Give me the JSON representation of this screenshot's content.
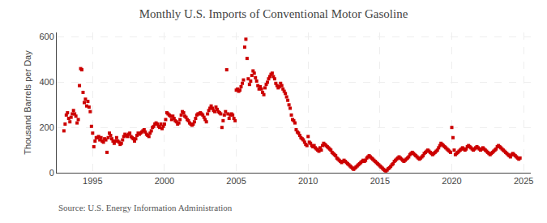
{
  "chart_data": {
    "type": "scatter",
    "title": "Monthly U.S. Imports of Conventional Motor Gasoline",
    "ylabel": "Thousand Barrels per Day",
    "annotations": [
      "Source: U.S. Energy Information Administration"
    ],
    "color": "#cc0000",
    "marker": "square",
    "grid": true,
    "xlim": [
      1992.5,
      2025.5
    ],
    "ylim": [
      0,
      620
    ],
    "xticks": [
      1995,
      2000,
      2005,
      2010,
      2015,
      2020,
      2025
    ],
    "yticks": [
      0,
      200,
      400,
      600
    ],
    "x": [
      1993.0,
      1993.083,
      1993.167,
      1993.25,
      1993.333,
      1993.417,
      1993.5,
      1993.583,
      1993.667,
      1993.75,
      1993.833,
      1993.917,
      1994.0,
      1994.083,
      1994.167,
      1994.25,
      1994.333,
      1994.417,
      1994.5,
      1994.583,
      1994.667,
      1994.75,
      1994.833,
      1994.917,
      1995.0,
      1995.083,
      1995.167,
      1995.25,
      1995.333,
      1995.417,
      1995.5,
      1995.583,
      1995.667,
      1995.75,
      1995.833,
      1995.917,
      1996.0,
      1996.083,
      1996.167,
      1996.25,
      1996.333,
      1996.417,
      1996.5,
      1996.583,
      1996.667,
      1996.75,
      1996.833,
      1996.917,
      1997.0,
      1997.083,
      1997.167,
      1997.25,
      1997.333,
      1997.417,
      1997.5,
      1997.583,
      1997.667,
      1997.75,
      1997.833,
      1997.917,
      1998.0,
      1998.083,
      1998.167,
      1998.25,
      1998.333,
      1998.417,
      1998.5,
      1998.583,
      1998.667,
      1998.75,
      1998.833,
      1998.917,
      1999.0,
      1999.083,
      1999.167,
      1999.25,
      1999.333,
      1999.417,
      1999.5,
      1999.583,
      1999.667,
      1999.75,
      1999.833,
      1999.917,
      2000.0,
      2000.083,
      2000.167,
      2000.25,
      2000.333,
      2000.417,
      2000.5,
      2000.583,
      2000.667,
      2000.75,
      2000.833,
      2000.917,
      2001.0,
      2001.083,
      2001.167,
      2001.25,
      2001.333,
      2001.417,
      2001.5,
      2001.583,
      2001.667,
      2001.75,
      2001.833,
      2001.917,
      2002.0,
      2002.083,
      2002.167,
      2002.25,
      2002.333,
      2002.417,
      2002.5,
      2002.583,
      2002.667,
      2002.75,
      2002.833,
      2002.917,
      2003.0,
      2003.083,
      2003.167,
      2003.25,
      2003.333,
      2003.417,
      2003.5,
      2003.583,
      2003.667,
      2003.75,
      2003.833,
      2003.917,
      2004.0,
      2004.083,
      2004.167,
      2004.25,
      2004.333,
      2004.417,
      2004.5,
      2004.583,
      2004.667,
      2004.75,
      2004.833,
      2004.917,
      2005.0,
      2005.083,
      2005.167,
      2005.25,
      2005.333,
      2005.417,
      2005.5,
      2005.583,
      2005.667,
      2005.75,
      2005.833,
      2005.917,
      2006.0,
      2006.083,
      2006.167,
      2006.25,
      2006.333,
      2006.417,
      2006.5,
      2006.583,
      2006.667,
      2006.75,
      2006.833,
      2006.917,
      2007.0,
      2007.083,
      2007.167,
      2007.25,
      2007.333,
      2007.417,
      2007.5,
      2007.583,
      2007.667,
      2007.75,
      2007.833,
      2007.917,
      2008.0,
      2008.083,
      2008.167,
      2008.25,
      2008.333,
      2008.417,
      2008.5,
      2008.583,
      2008.667,
      2008.75,
      2008.833,
      2008.917,
      2009.0,
      2009.083,
      2009.167,
      2009.25,
      2009.333,
      2009.417,
      2009.5,
      2009.583,
      2009.667,
      2009.75,
      2009.833,
      2009.917,
      2010.0,
      2010.083,
      2010.167,
      2010.25,
      2010.333,
      2010.417,
      2010.5,
      2010.583,
      2010.667,
      2010.75,
      2010.833,
      2010.917,
      2011.0,
      2011.083,
      2011.167,
      2011.25,
      2011.333,
      2011.417,
      2011.5,
      2011.583,
      2011.667,
      2011.75,
      2011.833,
      2011.917,
      2012.0,
      2012.083,
      2012.167,
      2012.25,
      2012.333,
      2012.417,
      2012.5,
      2012.583,
      2012.667,
      2012.75,
      2012.833,
      2012.917,
      2013.0,
      2013.083,
      2013.167,
      2013.25,
      2013.333,
      2013.417,
      2013.5,
      2013.583,
      2013.667,
      2013.75,
      2013.833,
      2013.917,
      2014.0,
      2014.083,
      2014.167,
      2014.25,
      2014.333,
      2014.417,
      2014.5,
      2014.583,
      2014.667,
      2014.75,
      2014.833,
      2014.917,
      2015.0,
      2015.083,
      2015.167,
      2015.25,
      2015.333,
      2015.417,
      2015.5,
      2015.583,
      2015.667,
      2015.75,
      2015.833,
      2015.917,
      2016.0,
      2016.083,
      2016.167,
      2016.25,
      2016.333,
      2016.417,
      2016.5,
      2016.583,
      2016.667,
      2016.75,
      2016.833,
      2016.917,
      2017.0,
      2017.083,
      2017.167,
      2017.25,
      2017.333,
      2017.417,
      2017.5,
      2017.583,
      2017.667,
      2017.75,
      2017.833,
      2017.917,
      2018.0,
      2018.083,
      2018.167,
      2018.25,
      2018.333,
      2018.417,
      2018.5,
      2018.583,
      2018.667,
      2018.75,
      2018.833,
      2018.917,
      2019.0,
      2019.083,
      2019.167,
      2019.25,
      2019.333,
      2019.417,
      2019.5,
      2019.583,
      2019.667,
      2019.75,
      2019.833,
      2019.917,
      2020.0,
      2020.083,
      2020.167,
      2020.25,
      2020.333,
      2020.417,
      2020.5,
      2020.583,
      2020.667,
      2020.75,
      2020.833,
      2020.917,
      2021.0,
      2021.083,
      2021.167,
      2021.25,
      2021.333,
      2021.417,
      2021.5,
      2021.583,
      2021.667,
      2021.75,
      2021.833,
      2021.917,
      2022.0,
      2022.083,
      2022.167,
      2022.25,
      2022.333,
      2022.417,
      2022.5,
      2022.583,
      2022.667,
      2022.75,
      2022.833,
      2022.917,
      2023.0,
      2023.083,
      2023.167,
      2023.25,
      2023.333,
      2023.417,
      2023.5,
      2023.583,
      2023.667,
      2023.75,
      2023.833,
      2023.917,
      2024.0,
      2024.083,
      2024.167,
      2024.25,
      2024.333,
      2024.417,
      2024.5,
      2024.583,
      2024.667,
      2024.75
    ],
    "values": [
      185,
      215,
      255,
      265,
      240,
      225,
      245,
      260,
      275,
      260,
      250,
      220,
      235,
      385,
      460,
      455,
      355,
      310,
      325,
      295,
      315,
      290,
      270,
      205,
      175,
      115,
      140,
      155,
      155,
      160,
      145,
      155,
      140,
      135,
      150,
      145,
      90,
      155,
      175,
      165,
      150,
      140,
      130,
      140,
      155,
      140,
      135,
      125,
      130,
      145,
      160,
      170,
      165,
      160,
      170,
      175,
      160,
      155,
      150,
      140,
      150,
      165,
      175,
      170,
      175,
      180,
      185,
      190,
      180,
      170,
      165,
      160,
      175,
      185,
      200,
      205,
      215,
      220,
      215,
      205,
      200,
      215,
      195,
      205,
      215,
      235,
      265,
      260,
      255,
      250,
      235,
      250,
      240,
      230,
      225,
      215,
      220,
      235,
      255,
      270,
      265,
      250,
      245,
      235,
      230,
      220,
      215,
      210,
      215,
      225,
      240,
      255,
      260,
      260,
      265,
      260,
      255,
      245,
      235,
      225,
      260,
      275,
      285,
      295,
      285,
      275,
      270,
      290,
      280,
      270,
      265,
      260,
      200,
      230,
      255,
      270,
      455,
      260,
      240,
      255,
      260,
      255,
      240,
      230,
      365,
      370,
      360,
      365,
      380,
      395,
      410,
      555,
      590,
      505,
      415,
      390,
      405,
      430,
      450,
      440,
      420,
      405,
      385,
      370,
      380,
      370,
      355,
      345,
      375,
      390,
      400,
      415,
      425,
      435,
      440,
      425,
      415,
      395,
      385,
      375,
      380,
      395,
      385,
      370,
      360,
      350,
      335,
      320,
      300,
      285,
      255,
      235,
      230,
      220,
      190,
      180,
      175,
      165,
      155,
      150,
      145,
      135,
      125,
      120,
      160,
      135,
      130,
      120,
      115,
      120,
      110,
      105,
      100,
      95,
      110,
      100,
      120,
      130,
      125,
      120,
      115,
      110,
      105,
      100,
      90,
      85,
      80,
      75,
      65,
      60,
      55,
      50,
      45,
      50,
      55,
      50,
      45,
      40,
      35,
      30,
      25,
      20,
      15,
      20,
      25,
      30,
      35,
      40,
      45,
      50,
      55,
      50,
      55,
      65,
      70,
      75,
      70,
      65,
      60,
      55,
      50,
      45,
      40,
      35,
      30,
      25,
      20,
      15,
      10,
      8,
      12,
      18,
      22,
      28,
      35,
      40,
      50,
      55,
      60,
      65,
      70,
      65,
      60,
      55,
      50,
      55,
      60,
      65,
      70,
      80,
      85,
      90,
      85,
      80,
      75,
      70,
      65,
      60,
      65,
      70,
      75,
      85,
      90,
      95,
      100,
      95,
      90,
      85,
      80,
      85,
      90,
      95,
      100,
      110,
      120,
      130,
      125,
      120,
      115,
      110,
      105,
      100,
      95,
      90,
      200,
      155,
      100,
      80,
      85,
      90,
      95,
      100,
      105,
      110,
      105,
      100,
      105,
      115,
      120,
      115,
      110,
      105,
      100,
      105,
      110,
      115,
      110,
      105,
      100,
      105,
      110,
      105,
      100,
      95,
      90,
      85,
      80,
      85,
      90,
      95,
      100,
      105,
      115,
      120,
      115,
      110,
      105,
      100,
      95,
      90,
      85,
      80,
      75,
      70,
      80,
      85,
      80,
      75,
      70,
      65,
      60,
      65
    ]
  }
}
